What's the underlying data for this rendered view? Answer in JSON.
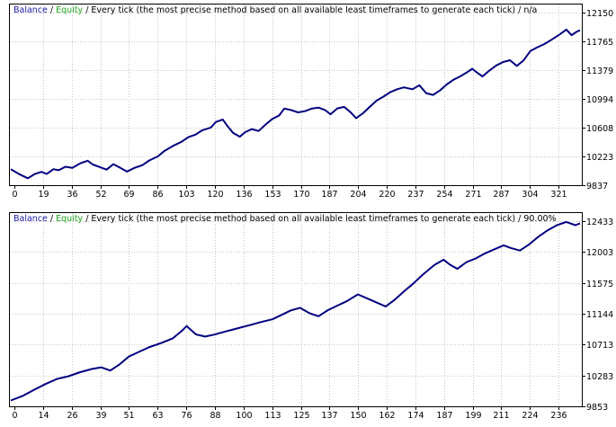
{
  "colors": {
    "balance": "#1a1aa6",
    "equity": "#1fa61f",
    "grid": "#c8c8c8",
    "frame": "#000000",
    "line": "#000080"
  },
  "chart_data": [
    {
      "type": "line",
      "legend": {
        "balance": "Balance",
        "sep": " / ",
        "equity": "Equity",
        "text": " / Every tick (the most precise method based on all available least timeframes to generate each tick) / n/a"
      },
      "x_ticks": [
        "0",
        "19",
        "36",
        "52",
        "69",
        "86",
        "103",
        "120",
        "136",
        "153",
        "170",
        "187",
        "204",
        "220",
        "237",
        "254",
        "271",
        "287",
        "304",
        "321"
      ],
      "y_ticks": [
        "12150",
        "11765",
        "11379",
        "10994",
        "10608",
        "10223",
        "9837"
      ],
      "xlim": [
        0,
        333
      ],
      "ylim": [
        9837,
        12150
      ],
      "series": [
        {
          "points": [
            [
              0,
              10050
            ],
            [
              5,
              9990
            ],
            [
              10,
              9940
            ],
            [
              14,
              10000
            ],
            [
              18,
              10030
            ],
            [
              21,
              10000
            ],
            [
              25,
              10060
            ],
            [
              28,
              10040
            ],
            [
              32,
              10080
            ],
            [
              36,
              10060
            ],
            [
              41,
              10120
            ],
            [
              45,
              10150
            ],
            [
              48,
              10100
            ],
            [
              52,
              10070
            ],
            [
              56,
              10040
            ],
            [
              60,
              10120
            ],
            [
              63,
              10090
            ],
            [
              68,
              10030
            ],
            [
              72,
              10080
            ],
            [
              77,
              10120
            ],
            [
              81,
              10180
            ],
            [
              86,
              10230
            ],
            [
              90,
              10300
            ],
            [
              95,
              10360
            ],
            [
              100,
              10410
            ],
            [
              104,
              10470
            ],
            [
              108,
              10500
            ],
            [
              112,
              10560
            ],
            [
              117,
              10600
            ],
            [
              120,
              10680
            ],
            [
              124,
              10720
            ],
            [
              127,
              10630
            ],
            [
              130,
              10550
            ],
            [
              134,
              10500
            ],
            [
              137,
              10560
            ],
            [
              141,
              10600
            ],
            [
              145,
              10570
            ],
            [
              149,
              10650
            ],
            [
              153,
              10720
            ],
            [
              157,
              10760
            ],
            [
              160,
              10850
            ],
            [
              164,
              10830
            ],
            [
              168,
              10800
            ],
            [
              172,
              10820
            ],
            [
              176,
              10860
            ],
            [
              180,
              10880
            ],
            [
              184,
              10850
            ],
            [
              187,
              10800
            ],
            [
              191,
              10880
            ],
            [
              195,
              10900
            ],
            [
              199,
              10820
            ],
            [
              202,
              10740
            ],
            [
              206,
              10800
            ],
            [
              210,
              10880
            ],
            [
              214,
              10960
            ],
            [
              218,
              11010
            ],
            [
              222,
              11070
            ],
            [
              226,
              11110
            ],
            [
              230,
              11140
            ],
            [
              235,
              11120
            ],
            [
              239,
              11180
            ],
            [
              243,
              11080
            ],
            [
              247,
              11060
            ],
            [
              251,
              11120
            ],
            [
              255,
              11200
            ],
            [
              259,
              11260
            ],
            [
              263,
              11300
            ],
            [
              267,
              11350
            ],
            [
              270,
              11390
            ],
            [
              273,
              11330
            ],
            [
              276,
              11280
            ],
            [
              280,
              11360
            ],
            [
              284,
              11430
            ],
            [
              288,
              11480
            ],
            [
              292,
              11510
            ],
            [
              296,
              11440
            ],
            [
              300,
              11520
            ],
            [
              304,
              11650
            ],
            [
              308,
              11700
            ],
            [
              312,
              11740
            ],
            [
              316,
              11790
            ],
            [
              321,
              11860
            ],
            [
              325,
              11920
            ],
            [
              328,
              11840
            ],
            [
              331,
              11880
            ],
            [
              333,
              11900
            ]
          ]
        }
      ]
    },
    {
      "type": "line",
      "legend": {
        "balance": "Balance",
        "sep": " / ",
        "equity": "Equity",
        "text": " / Every tick (the most precise method based on all available least timeframes to generate each tick) / 90.00%"
      },
      "x_ticks": [
        "0",
        "14",
        "26",
        "39",
        "51",
        "63",
        "76",
        "88",
        "100",
        "113",
        "125",
        "137",
        "150",
        "162",
        "174",
        "187",
        "199",
        "211",
        "224",
        "236"
      ],
      "y_ticks": [
        "12433",
        "12003",
        "11575",
        "11144",
        "10713",
        "10283",
        "9853"
      ],
      "xlim": [
        0,
        246
      ],
      "ylim": [
        9853,
        12433
      ],
      "series": [
        {
          "points": [
            [
              0,
              9935
            ],
            [
              5,
              9990
            ],
            [
              10,
              10070
            ],
            [
              15,
              10150
            ],
            [
              20,
              10220
            ],
            [
              25,
              10260
            ],
            [
              30,
              10320
            ],
            [
              35,
              10370
            ],
            [
              39,
              10400
            ],
            [
              43,
              10360
            ],
            [
              47,
              10450
            ],
            [
              51,
              10560
            ],
            [
              55,
              10620
            ],
            [
              60,
              10690
            ],
            [
              65,
              10740
            ],
            [
              70,
              10800
            ],
            [
              74,
              10900
            ],
            [
              76,
              10960
            ],
            [
              80,
              10840
            ],
            [
              84,
              10810
            ],
            [
              88,
              10840
            ],
            [
              92,
              10880
            ],
            [
              96,
              10920
            ],
            [
              100,
              10960
            ],
            [
              104,
              11000
            ],
            [
              108,
              11040
            ],
            [
              113,
              11080
            ],
            [
              117,
              11140
            ],
            [
              121,
              11200
            ],
            [
              125,
              11230
            ],
            [
              129,
              11150
            ],
            [
              133,
              11100
            ],
            [
              137,
              11180
            ],
            [
              141,
              11240
            ],
            [
              145,
              11300
            ],
            [
              150,
              11400
            ],
            [
              154,
              11350
            ],
            [
              158,
              11300
            ],
            [
              162,
              11250
            ],
            [
              166,
              11350
            ],
            [
              170,
              11470
            ],
            [
              174,
              11580
            ],
            [
              178,
              11700
            ],
            [
              183,
              11830
            ],
            [
              187,
              11900
            ],
            [
              190,
              11820
            ],
            [
              193,
              11760
            ],
            [
              197,
              11850
            ],
            [
              201,
              11900
            ],
            [
              205,
              11970
            ],
            [
              209,
              12030
            ],
            [
              213,
              12090
            ],
            [
              216,
              12060
            ],
            [
              220,
              12030
            ],
            [
              224,
              12120
            ],
            [
              228,
              12230
            ],
            [
              232,
              12320
            ],
            [
              236,
              12390
            ],
            [
              240,
              12430
            ],
            [
              244,
              12380
            ],
            [
              246,
              12400
            ]
          ]
        }
      ]
    }
  ]
}
